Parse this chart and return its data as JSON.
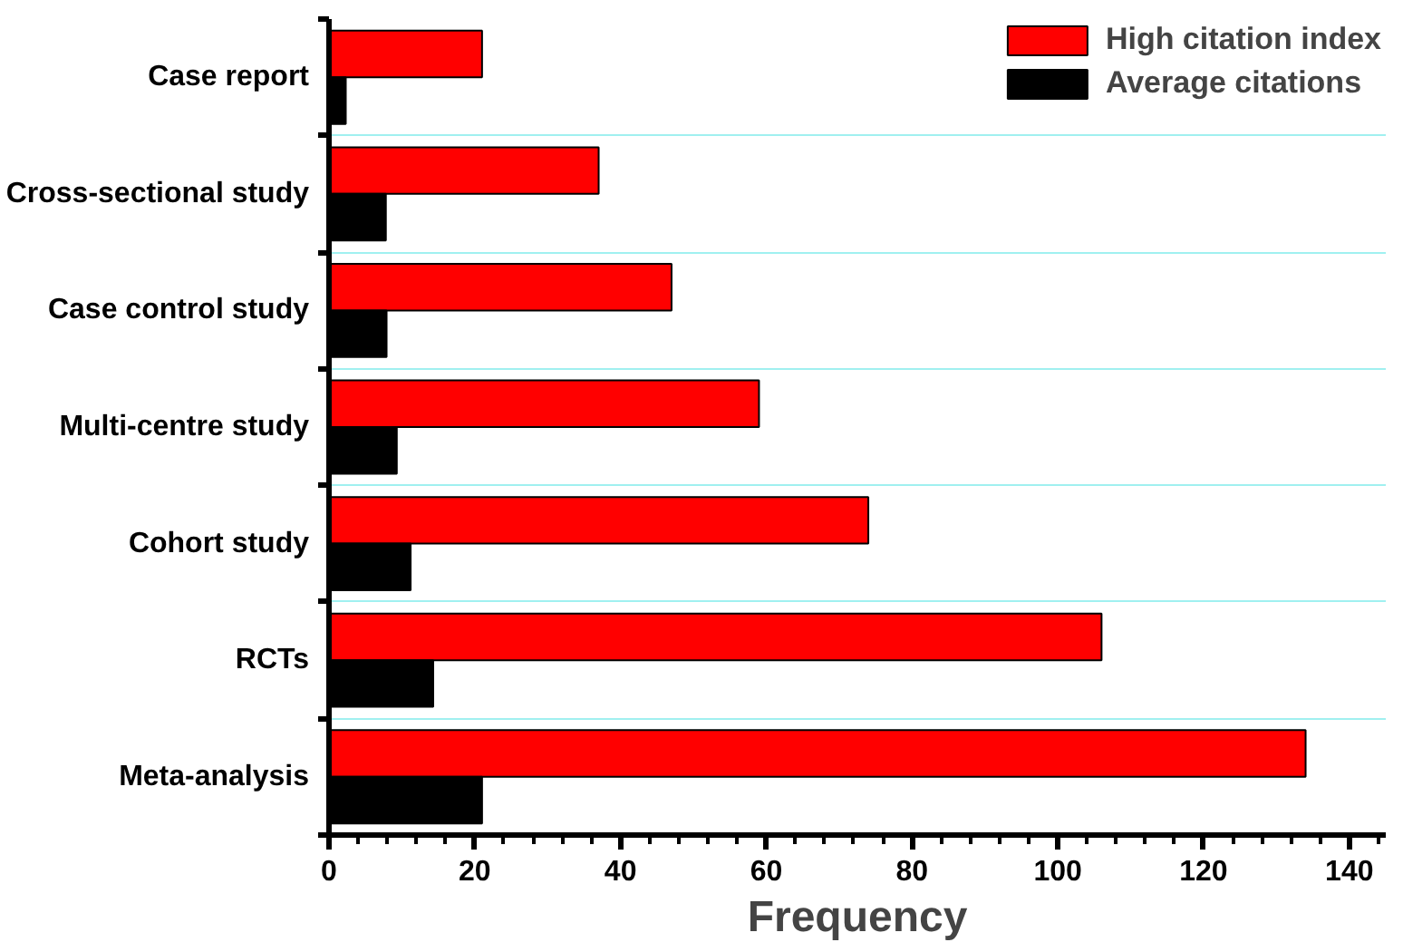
{
  "chart_data": {
    "type": "bar",
    "orientation": "horizontal",
    "xlabel": "Frequency",
    "categories": [
      "Case report",
      "Cross-sectional study",
      "Case control study",
      "Multi-centre study",
      "Cohort study",
      "RCTs",
      "Meta-analysis"
    ],
    "series": [
      {
        "name": "High citation index",
        "color": "#ff0000",
        "values": [
          21,
          37,
          47,
          59,
          74,
          106,
          134
        ]
      },
      {
        "name": "Average citations",
        "color": "#000000",
        "values": [
          2.3,
          7.8,
          7.9,
          9.3,
          11.2,
          14.3,
          21
        ]
      }
    ],
    "xlim": [
      0,
      145
    ],
    "xticks": [
      0,
      20,
      40,
      60,
      80,
      100,
      120,
      140
    ],
    "grid": "y",
    "legend": "top right"
  }
}
